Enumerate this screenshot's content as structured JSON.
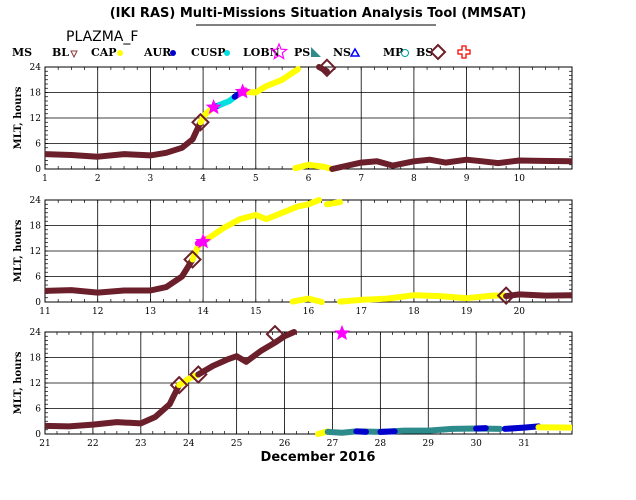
{
  "header": {
    "title": "(IKI RAS) Multi-Missions Situation Analysis Tool (MMSAT)",
    "subtitle": "PLAZMA_F"
  },
  "chart_data": {
    "type": "scatter",
    "xlabel": "December 2016",
    "ylabel": "MLT, hours",
    "legend": [
      {
        "label": "MS",
        "color": "#000000",
        "marker": "none"
      },
      {
        "label": "BL",
        "color": "#8b3a3a",
        "marker": "triangle-down"
      },
      {
        "label": "CAP",
        "color": "#ffff00",
        "marker": "dot"
      },
      {
        "label": "AUR",
        "color": "#0000cc",
        "marker": "dot"
      },
      {
        "label": "CUSP",
        "color": "#00e0e0",
        "marker": "dot"
      },
      {
        "label": "LOBN",
        "color": "#ff00ff",
        "marker": "star"
      },
      {
        "label": "PS",
        "color": "#2e8b8b",
        "marker": "triangle-corner"
      },
      {
        "label": "NS",
        "color": "#0000ff",
        "marker": "triangle"
      },
      {
        "label": "MP",
        "color": "#00a0a0",
        "marker": "circle"
      },
      {
        "label": "BS",
        "color": "#6b1f2a",
        "marker": "diamond"
      },
      {
        "label": "",
        "color": "#ff0000",
        "marker": "cross"
      }
    ],
    "panels": [
      {
        "xlim": [
          1,
          11
        ],
        "ylim": [
          0,
          24
        ],
        "xticks": [
          1,
          2,
          3,
          4,
          5,
          6,
          7,
          8,
          9,
          10
        ],
        "yticks": [
          0,
          6,
          12,
          18,
          24
        ],
        "series": [
          {
            "color": "#6b1f2a",
            "points": [
              [
                1,
                3.5
              ],
              [
                1.5,
                3.3
              ],
              [
                2,
                2.9
              ],
              [
                2.5,
                3.5
              ],
              [
                3,
                3.2
              ],
              [
                3.3,
                3.8
              ],
              [
                3.6,
                5
              ],
              [
                3.8,
                7
              ],
              [
                3.95,
                11
              ]
            ]
          },
          {
            "color": "#ffff00",
            "points": [
              [
                3.95,
                11
              ],
              [
                4.05,
                13
              ],
              [
                4.2,
                14.5
              ]
            ]
          },
          {
            "color": "#0000cc",
            "points": [
              [
                4.2,
                14.5
              ],
              [
                4.3,
                15
              ]
            ]
          },
          {
            "color": "#00e0e0",
            "points": [
              [
                4.3,
                15
              ],
              [
                4.5,
                16
              ],
              [
                4.6,
                17
              ]
            ]
          },
          {
            "color": "#0000cc",
            "points": [
              [
                4.6,
                17
              ],
              [
                4.7,
                17.8
              ]
            ]
          },
          {
            "color": "#ff00ff",
            "points": [
              [
                4.72,
                17.8
              ],
              [
                4.8,
                18.5
              ]
            ]
          },
          {
            "color": "#ffff00",
            "points": [
              [
                4.8,
                18.2
              ],
              [
                5,
                18
              ],
              [
                5.2,
                19.5
              ],
              [
                5.5,
                21
              ],
              [
                5.8,
                23.5
              ]
            ]
          },
          {
            "color": "#6b1f2a",
            "points": [
              [
                6.2,
                24
              ],
              [
                6.35,
                23
              ]
            ]
          },
          {
            "color": "#ffff00",
            "points": [
              [
                5.75,
                0.2
              ],
              [
                6,
                1
              ],
              [
                6.3,
                0.5
              ],
              [
                6.45,
                0
              ]
            ]
          },
          {
            "color": "#6b1f2a",
            "points": [
              [
                6.45,
                0
              ],
              [
                7,
                1.5
              ],
              [
                7.3,
                1.8
              ],
              [
                7.6,
                0.8
              ],
              [
                8,
                1.8
              ],
              [
                8.3,
                2.2
              ],
              [
                8.6,
                1.5
              ],
              [
                9,
                2.2
              ],
              [
                9.3,
                1.8
              ],
              [
                9.6,
                1.4
              ],
              [
                10,
                2
              ],
              [
                10.4,
                1.9
              ],
              [
                11,
                1.8
              ]
            ]
          }
        ],
        "diamonds": [
          [
            3.95,
            11
          ],
          [
            6.35,
            23.8
          ]
        ],
        "stars": [
          [
            4.2,
            14.5
          ],
          [
            4.75,
            18.2
          ]
        ]
      },
      {
        "xlim": [
          11,
          21
        ],
        "ylim": [
          0,
          24
        ],
        "xticks": [
          11,
          12,
          13,
          14,
          15,
          16,
          17,
          18,
          19,
          20
        ],
        "yticks": [
          0,
          6,
          12,
          18,
          24
        ],
        "series": [
          {
            "color": "#6b1f2a",
            "points": [
              [
                11,
                2.6
              ],
              [
                11.5,
                2.8
              ],
              [
                12,
                2.2
              ],
              [
                12.5,
                2.7
              ],
              [
                13,
                2.7
              ],
              [
                13.3,
                3.5
              ],
              [
                13.6,
                6
              ],
              [
                13.8,
                10
              ]
            ]
          },
          {
            "color": "#ffff00",
            "points": [
              [
                13.8,
                10
              ],
              [
                13.9,
                13
              ],
              [
                14,
                14.5
              ]
            ]
          },
          {
            "color": "#ff00ff",
            "points": [
              [
                13.9,
                13.8
              ],
              [
                14.1,
                15
              ]
            ]
          },
          {
            "color": "#ffff00",
            "points": [
              [
                14.1,
                15
              ],
              [
                14.4,
                17.5
              ],
              [
                14.7,
                19.5
              ],
              [
                15,
                20.5
              ],
              [
                15.2,
                19.5
              ],
              [
                15.5,
                21
              ],
              [
                15.8,
                22.5
              ],
              [
                16,
                23
              ],
              [
                16.2,
                24
              ]
            ]
          },
          {
            "color": "#ffff00",
            "points": [
              [
                16.35,
                23
              ],
              [
                16.6,
                23.5
              ]
            ]
          },
          {
            "color": "#ffff00",
            "points": [
              [
                15.7,
                0.1
              ],
              [
                16,
                0.8
              ],
              [
                16.25,
                0
              ]
            ]
          },
          {
            "color": "#ffff00",
            "points": [
              [
                16.6,
                0.1
              ],
              [
                17,
                0.5
              ],
              [
                17.5,
                0.8
              ],
              [
                18,
                1.6
              ],
              [
                18.5,
                1.4
              ],
              [
                19,
                0.9
              ],
              [
                19.5,
                1.5
              ],
              [
                19.75,
                1.5
              ]
            ]
          },
          {
            "color": "#6b1f2a",
            "points": [
              [
                19.75,
                1.4
              ],
              [
                20,
                1.8
              ],
              [
                20.5,
                1.5
              ],
              [
                21,
                1.6
              ]
            ]
          }
        ],
        "diamonds": [
          [
            13.8,
            10
          ],
          [
            19.75,
            1.5
          ]
        ],
        "stars": [
          [
            14,
            14.2
          ]
        ]
      },
      {
        "xlim": [
          21,
          32
        ],
        "ylim": [
          0,
          24
        ],
        "xticks": [
          21,
          22,
          23,
          24,
          25,
          26,
          27,
          28,
          29,
          30,
          31
        ],
        "yticks": [
          0,
          6,
          12,
          18,
          24
        ],
        "series": [
          {
            "color": "#6b1f2a",
            "points": [
              [
                21,
                1.9
              ],
              [
                21.5,
                1.8
              ],
              [
                22,
                2.2
              ],
              [
                22.5,
                2.8
              ],
              [
                23,
                2.5
              ],
              [
                23.3,
                4
              ],
              [
                23.6,
                7
              ],
              [
                23.8,
                11.5
              ]
            ]
          },
          {
            "color": "#ffff00",
            "points": [
              [
                23.8,
                11.5
              ],
              [
                24,
                13
              ],
              [
                24.2,
                14
              ]
            ]
          },
          {
            "color": "#6b1f2a",
            "points": [
              [
                24.2,
                14
              ],
              [
                24.5,
                16
              ],
              [
                24.8,
                17.5
              ],
              [
                25,
                18.3
              ],
              [
                25.2,
                17
              ],
              [
                25.5,
                19.5
              ],
              [
                25.8,
                21.5
              ],
              [
                26,
                23
              ],
              [
                26.2,
                24
              ]
            ]
          },
          {
            "color": "#ffff00",
            "points": [
              [
                26.7,
                0
              ],
              [
                26.9,
                0.6
              ]
            ]
          },
          {
            "color": "#2e8b8b",
            "points": [
              [
                26.9,
                0.5
              ],
              [
                27.2,
                0.3
              ],
              [
                27.5,
                0.6
              ],
              [
                28,
                0.5
              ],
              [
                28.5,
                0.8
              ],
              [
                29,
                0.8
              ],
              [
                29.5,
                1.2
              ],
              [
                30,
                1.3
              ],
              [
                30.5,
                1.2
              ]
            ]
          },
          {
            "color": "#0000cc",
            "points": [
              [
                27.5,
                0.6
              ],
              [
                27.7,
                0.5
              ]
            ]
          },
          {
            "color": "#0000cc",
            "points": [
              [
                28,
                0.5
              ],
              [
                28.3,
                0.6
              ]
            ]
          },
          {
            "color": "#0000cc",
            "points": [
              [
                30,
                1.3
              ],
              [
                30.2,
                1.4
              ]
            ]
          },
          {
            "color": "#0000cc",
            "points": [
              [
                30.6,
                1.2
              ],
              [
                31,
                1.5
              ],
              [
                31.3,
                1.8
              ]
            ]
          },
          {
            "color": "#ffff00",
            "points": [
              [
                31.3,
                1.6
              ],
              [
                32,
                1.5
              ]
            ]
          }
        ],
        "diamonds": [
          [
            23.8,
            11.5
          ],
          [
            24.2,
            14
          ],
          [
            25.8,
            23.5
          ]
        ],
        "stars": [
          [
            27.2,
            23.7
          ]
        ]
      }
    ]
  }
}
